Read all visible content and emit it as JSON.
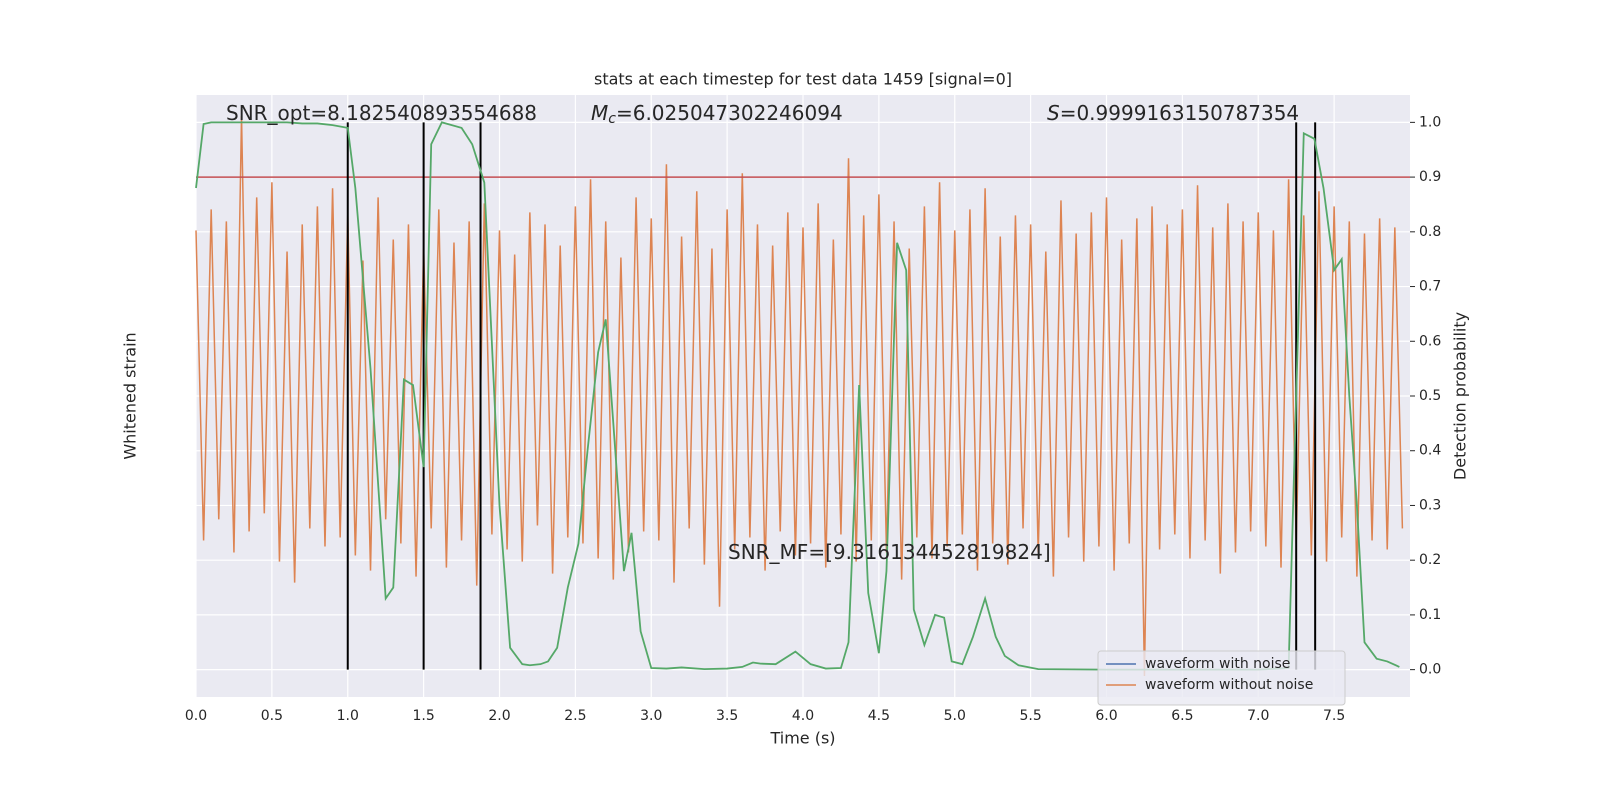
{
  "chart_data": {
    "type": "line",
    "title": "stats at each timestep for test data 1459 [signal=0]",
    "xlabel": "Time (s)",
    "ylabel": "Whitened strain",
    "y2label": "Detection probability",
    "xlim": [
      0,
      8
    ],
    "ylim": [
      -1,
      1
    ],
    "y2lim": [
      -0.05,
      1.05
    ],
    "xticks": [
      {
        "value": 0,
        "label": "0.0"
      },
      0.5,
      {
        "value": 1,
        "label": "1.0"
      },
      1.5,
      {
        "value": 2,
        "label": "2.0"
      },
      2.5,
      {
        "value": 3,
        "label": "3.0"
      },
      3.5,
      {
        "value": 4,
        "label": "4.0"
      },
      4.5,
      {
        "value": 5,
        "label": "5.0"
      },
      5.5,
      {
        "value": 6,
        "label": "6.0"
      },
      6.5,
      {
        "value": 7,
        "label": "7.0"
      },
      7.5
    ],
    "y2ticks": [
      {
        "value": 0,
        "label": "0.0"
      },
      0.1,
      0.2,
      0.3,
      0.4,
      0.5,
      0.6,
      0.7,
      0.8,
      0.9,
      {
        "value": 1,
        "label": "1.0"
      }
    ],
    "grid": true,
    "background": "#eaeaf2",
    "legend": "lower right",
    "series": [
      {
        "name": "waveform with noise",
        "color": "#4c72b0"
      },
      {
        "name": "waveform without noise",
        "color": "#dd8452",
        "x": [
          0,
          0.05,
          0.1,
          0.15,
          0.2,
          0.25,
          0.3,
          0.35,
          0.4,
          0.45,
          0.5,
          0.55,
          0.6,
          0.65,
          0.7,
          0.75,
          0.8,
          0.85,
          0.9,
          0.95,
          1,
          1.05,
          1.1,
          1.15,
          1.2,
          1.25,
          1.3,
          1.35,
          1.4,
          1.45,
          1.5,
          1.55,
          1.6,
          1.65,
          1.7,
          1.75,
          1.8,
          1.85,
          1.9,
          1.95,
          2,
          2.05,
          2.1,
          2.15,
          2.2,
          2.25,
          2.3,
          2.35,
          2.4,
          2.45,
          2.5,
          2.55,
          2.6,
          2.65,
          2.7,
          2.75,
          2.8,
          2.85,
          2.9,
          2.95,
          3,
          3.05,
          3.1,
          3.15,
          3.2,
          3.25,
          3.3,
          3.35,
          3.4,
          3.45,
          3.5,
          3.55,
          3.6,
          3.65,
          3.7,
          3.75,
          3.8,
          3.85,
          3.9,
          3.95,
          4,
          4.05,
          4.1,
          4.15,
          4.2,
          4.25,
          4.3,
          4.35,
          4.4,
          4.45,
          4.5,
          4.55,
          4.6,
          4.65,
          4.7,
          4.75,
          4.8,
          4.85,
          4.9,
          4.95,
          5,
          5.05,
          5.1,
          5.15,
          5.2,
          5.25,
          5.3,
          5.35,
          5.4,
          5.45,
          5.5,
          5.55,
          5.6,
          5.65,
          5.7,
          5.75,
          5.8,
          5.85,
          5.9,
          5.95,
          6,
          6.05,
          6.1,
          6.15,
          6.2,
          6.25,
          6.3,
          6.35,
          6.4,
          6.45,
          6.5,
          6.55,
          6.6,
          6.65,
          6.7,
          6.75,
          6.8,
          6.85,
          6.9,
          6.95,
          7,
          7.05,
          7.1,
          7.15,
          7.2,
          7.25,
          7.3,
          7.35,
          7.4,
          7.45,
          7.5,
          7.55,
          7.6,
          7.65,
          7.7,
          7.75,
          7.8,
          7.85,
          7.9,
          7.95
        ],
        "values": [
          0.55,
          -0.48,
          0.62,
          -0.41,
          0.58,
          -0.52,
          0.93,
          -0.45,
          0.66,
          -0.39,
          0.71,
          -0.55,
          0.48,
          -0.62,
          0.57,
          -0.44,
          0.63,
          -0.5,
          0.69,
          -0.47,
          0.6,
          -0.53,
          0.45,
          -0.58,
          0.66,
          -0.41,
          0.52,
          -0.49,
          0.57,
          -0.6,
          0.49,
          -0.44,
          0.62,
          -0.57,
          0.51,
          -0.48,
          0.58,
          -0.63,
          0.64,
          -0.46,
          0.55,
          -0.51,
          0.47,
          -0.55,
          0.61,
          -0.43,
          0.57,
          -0.59,
          0.5,
          -0.47,
          0.63,
          -0.49,
          0.72,
          -0.54,
          0.58,
          -0.61,
          0.46,
          -0.52,
          0.66,
          -0.45,
          0.59,
          -0.48,
          0.77,
          -0.62,
          0.53,
          -0.44,
          0.68,
          -0.56,
          0.49,
          -0.7,
          0.62,
          -0.51,
          0.74,
          -0.47,
          0.57,
          -0.58,
          0.5,
          -0.45,
          0.61,
          -0.53,
          0.56,
          -0.49,
          0.64,
          -0.57,
          0.52,
          -0.46,
          0.79,
          -0.55,
          0.6,
          -0.48,
          0.67,
          -0.52,
          0.58,
          -0.61,
          0.49,
          -0.47,
          0.63,
          -0.54,
          0.71,
          -0.5,
          0.55,
          -0.46,
          0.62,
          -0.58,
          0.69,
          -0.49,
          0.53,
          -0.56,
          0.6,
          -0.44,
          0.57,
          -0.52,
          0.48,
          -0.6,
          0.65,
          -0.47,
          0.54,
          -0.55,
          0.61,
          -0.5,
          0.66,
          -0.58,
          0.52,
          -0.49,
          0.59,
          -0.93,
          0.63,
          -0.51,
          0.57,
          -0.46,
          0.62,
          -0.54,
          0.7,
          -0.48,
          0.56,
          -0.59,
          0.64,
          -0.52,
          0.58,
          -0.45,
          0.61,
          -0.5,
          0.55,
          -0.57,
          0.72,
          -0.49,
          0.6,
          -0.53,
          0.68,
          -0.55,
          0.63,
          -0.47,
          0.58,
          -0.6,
          0.54,
          -0.48,
          0.59,
          -0.51,
          0.56,
          -0.44
        ]
      },
      {
        "color": "#55a868",
        "axis": "y2",
        "x": [
          0,
          0.05,
          0.1,
          0.2,
          0.3,
          0.4,
          0.5,
          0.6,
          0.7,
          0.8,
          0.9,
          1.0,
          1.05,
          1.15,
          1.25,
          1.3,
          1.37,
          1.43,
          1.5,
          1.55,
          1.62,
          1.75,
          1.82,
          1.9,
          2.0,
          2.07,
          2.15,
          2.2,
          2.27,
          2.32,
          2.38,
          2.45,
          2.52,
          2.58,
          2.65,
          2.7,
          2.75,
          2.82,
          2.87,
          2.93,
          3.0,
          3.1,
          3.2,
          3.35,
          3.5,
          3.6,
          3.67,
          3.72,
          3.82,
          3.95,
          4.05,
          4.15,
          4.25,
          4.3,
          4.37,
          4.43,
          4.5,
          4.55,
          4.62,
          4.68,
          4.73,
          4.8,
          4.87,
          4.93,
          4.98,
          5.05,
          5.12,
          5.2,
          5.27,
          5.33,
          5.42,
          5.55,
          6.0,
          7.0,
          7.2,
          7.25,
          7.3,
          7.37,
          7.43,
          7.5,
          7.55,
          7.6,
          7.65,
          7.7,
          7.78,
          7.85,
          7.93
        ],
        "values": [
          0.88,
          0.997,
          1,
          1,
          1,
          1,
          1,
          1,
          0.998,
          0.998,
          0.995,
          0.99,
          0.88,
          0.55,
          0.13,
          0.15,
          0.53,
          0.52,
          0.37,
          0.96,
          1.0,
          0.99,
          0.96,
          0.89,
          0.3,
          0.04,
          0.01,
          0.008,
          0.01,
          0.015,
          0.04,
          0.15,
          0.23,
          0.4,
          0.58,
          0.64,
          0.45,
          0.18,
          0.25,
          0.07,
          0.003,
          0.002,
          0.004,
          0.001,
          0.002,
          0.005,
          0.013,
          0.011,
          0.01,
          0.033,
          0.01,
          0.002,
          0.003,
          0.05,
          0.52,
          0.14,
          0.03,
          0.18,
          0.78,
          0.73,
          0.11,
          0.045,
          0.1,
          0.095,
          0.015,
          0.01,
          0.06,
          0.13,
          0.06,
          0.025,
          0.008,
          0.001,
          0.0,
          0.0,
          0.003,
          0.5,
          0.98,
          0.97,
          0.88,
          0.73,
          0.75,
          0.5,
          0.3,
          0.05,
          0.02,
          0.015,
          0.005
        ]
      }
    ],
    "threshold": {
      "value": 0.9,
      "color": "#c44e52"
    },
    "vlines": {
      "x": [
        1.0,
        1.5,
        1.875,
        7.25,
        7.375
      ],
      "range": [
        0,
        1
      ],
      "color": "#000000"
    },
    "annotations": [
      {
        "text": "SNR_opt=8.182540893554688"
      },
      {
        "symbol": "M",
        "subscript": "c",
        "text": "=6.025047302246094"
      },
      {
        "symbol": "S",
        "text": "=0.9999163150787354"
      },
      {
        "text": "SNR_MF=[9.316134452819824]"
      }
    ]
  }
}
